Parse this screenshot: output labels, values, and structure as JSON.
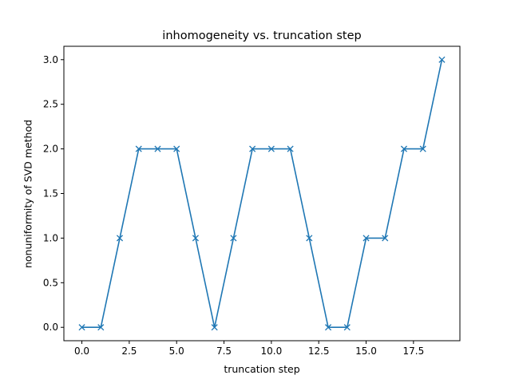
{
  "chart_data": {
    "type": "line",
    "title": "inhomogeneity vs. truncation step",
    "xlabel": "truncation step",
    "ylabel": "nonuniformity of SVD method",
    "xlim": [
      -0.95,
      19.95
    ],
    "ylim": [
      -0.15,
      3.15
    ],
    "xticks": [
      0,
      2.5,
      5,
      7.5,
      10,
      12.5,
      15,
      17.5
    ],
    "xtick_labels": [
      "0.0",
      "2.5",
      "5.0",
      "7.5",
      "10.0",
      "12.5",
      "15.0",
      "17.5"
    ],
    "yticks": [
      0,
      0.5,
      1,
      1.5,
      2,
      2.5,
      3
    ],
    "ytick_labels": [
      "0.0",
      "0.5",
      "1.0",
      "1.5",
      "2.0",
      "2.5",
      "3.0"
    ],
    "grid": false,
    "marker": "x",
    "color": "#1f77b4",
    "series": [
      {
        "x": [
          0,
          1,
          2,
          3,
          4,
          5,
          6,
          7,
          8,
          9,
          10,
          11,
          12,
          13,
          14,
          15,
          16,
          17,
          18,
          19
        ],
        "values": [
          0,
          0,
          1,
          2,
          2,
          2,
          1,
          0,
          1,
          2,
          2,
          2,
          1,
          0,
          0,
          1,
          1,
          2,
          2,
          3
        ]
      }
    ]
  }
}
